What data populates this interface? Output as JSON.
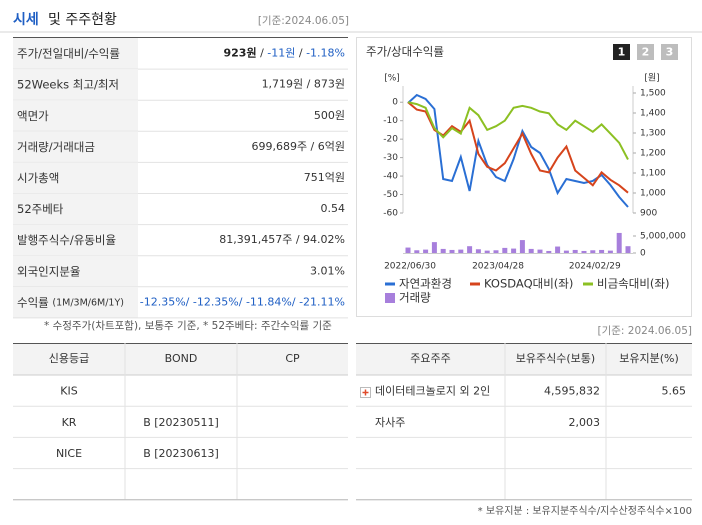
{
  "header": {
    "title": "시세",
    "title_rest": "및 주주현황",
    "date": "[기준:2024.06.05]"
  },
  "quote_table": {
    "rows": [
      {
        "label": "주가/전일대비/수익률",
        "value": [
          "923원",
          " / ",
          "-11원",
          " / ",
          "-1.18%"
        ]
      },
      {
        "label": "52Weeks 최고/최저",
        "value": [
          "1,719원 / 873원"
        ]
      },
      {
        "label": "액면가",
        "value": [
          "500원"
        ]
      },
      {
        "label": "거래량/거래대금",
        "value": [
          "699,689주 / 6억원"
        ]
      },
      {
        "label": "시가총액",
        "value": [
          "751억원"
        ]
      },
      {
        "label": "52주베타",
        "value": [
          "0.54"
        ]
      },
      {
        "label": "발행주식수/유동비율",
        "value": [
          "81,391,457주 / 94.02%"
        ]
      },
      {
        "label": "외국인지분율",
        "value": [
          "3.01%"
        ]
      },
      {
        "label": "수익률",
        "label_note": "(1M/3M/6M/1Y)",
        "value": [
          "-12.35%/ -12.35%/ -11.84%/ -21.11%"
        ]
      }
    ]
  },
  "notes": {
    "quote": "* 수정주가(차트포함), 보통주 기준, * 52주베타: 주간수익률 기준",
    "date2": "[기준: 2024.06.05]",
    "holders": "* 보유지분 : 보유지분주식수/지수산정주식수×100"
  },
  "chart_data": {
    "type": "line",
    "title": "주가/상대수익률",
    "tabs": [
      "1",
      "2",
      "3"
    ],
    "y_unit": "[%]",
    "y2_unit": "[원]",
    "categories": [
      "2022/06/30",
      null,
      null,
      null,
      null,
      null,
      null,
      null,
      null,
      null,
      "2023/04/28",
      null,
      null,
      null,
      null,
      null,
      null,
      null,
      null,
      null,
      null,
      "2024/02/29",
      null,
      null,
      null,
      null
    ],
    "series": [
      {
        "name": "자연과환경",
        "color": "#2a6fd4",
        "axis": "y2",
        "values": [
          1450,
          1490,
          1470,
          1420,
          1070,
          1060,
          1180,
          1010,
          1260,
          1140,
          1080,
          1060,
          1170,
          1310,
          1230,
          1200,
          1120,
          1000,
          1070,
          1060,
          1050,
          1060,
          1090,
          1040,
          980,
          930
        ]
      },
      {
        "name": "KOSDAQ대비(좌)",
        "color": "#d6441c",
        "values": [
          0,
          -4,
          -5,
          -15,
          -18,
          -13,
          -16,
          -10,
          -28,
          -35,
          -37,
          -33,
          -25,
          -17,
          -28,
          -37,
          -38,
          -30,
          -24,
          -37,
          -41,
          -45,
          -38,
          -42,
          -45,
          -49
        ]
      },
      {
        "name": "비금속대비(좌)",
        "color": "#8cc023",
        "values": [
          0,
          -1,
          -3,
          -14,
          -19,
          -14,
          -17,
          -3,
          -7,
          -15,
          -13,
          -10,
          -3,
          -2,
          -3,
          -5,
          -6,
          -12,
          -15,
          -10,
          -13,
          -16,
          -12,
          -17,
          -22,
          -31
        ]
      },
      {
        "name": "거래량",
        "color": "#a77fdc",
        "type": "bar",
        "axis": "y3",
        "values": [
          1600000,
          800000,
          1000000,
          3200000,
          1200000,
          900000,
          1000000,
          2000000,
          1100000,
          700000,
          800000,
          1500000,
          1300000,
          3800000,
          1200000,
          1000000,
          600000,
          1900000,
          700000,
          900000,
          600000,
          800000,
          900000,
          700000,
          5900000,
          2000000
        ]
      }
    ],
    "ylim": [
      -60,
      5
    ],
    "yticks": [
      0,
      -10,
      -20,
      -30,
      -40,
      -50,
      -60
    ],
    "y2lim": [
      900,
      1500
    ],
    "y2ticks": [
      {
        "value": 1500,
        "label": "1,500"
      },
      {
        "value": 1400,
        "label": "1,400"
      },
      {
        "value": 1300,
        "label": "1,300"
      },
      {
        "value": 1200,
        "label": "1,200"
      },
      {
        "value": 1100,
        "label": "1,100"
      },
      {
        "value": 1000,
        "label": "1,000"
      },
      900
    ],
    "y3lim": [
      0,
      5000000
    ],
    "y3ticks": [
      {
        "value": 5000000,
        "label": "5,000,000"
      },
      0
    ]
  },
  "credit_table": {
    "headers": [
      "신용등급",
      "BOND",
      "CP"
    ],
    "rows": [
      [
        "KIS",
        null,
        null
      ],
      [
        "KR",
        "B [20230511]",
        null
      ],
      [
        "NICE",
        "B [20230613]",
        null
      ],
      [
        null,
        null,
        null
      ]
    ]
  },
  "holders_table": {
    "headers": [
      "주요주주",
      "보유주식수(보통)",
      "보유지분(%)"
    ],
    "rows": [
      [
        "데이터테크놀로지 외 2인",
        "4,595,832",
        "5.65"
      ],
      [
        "자사주",
        "2,003",
        null
      ],
      [
        null,
        null,
        null
      ],
      [
        null,
        null,
        null
      ]
    ]
  }
}
